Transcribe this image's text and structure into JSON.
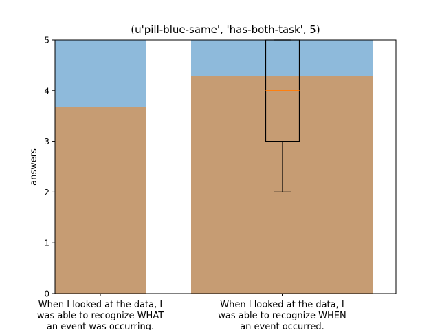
{
  "chart_data": {
    "type": "bar",
    "title": "(u'pill-blue-same', 'has-both-task', 5)",
    "ylabel": "answers",
    "xlabel": "",
    "ylim": [
      0,
      5
    ],
    "yticks": [
      "0",
      "1",
      "2",
      "3",
      "4",
      "5"
    ],
    "categories": [
      [
        "When I looked at the data, I",
        "was able to recognize WHAT",
        "an event was occurring."
      ],
      [
        "When I looked at the data, I",
        "was able to recognize WHEN",
        "an event occurred."
      ]
    ],
    "series": [
      {
        "color": "#8ebadb",
        "values": [
          5,
          5
        ]
      },
      {
        "color": "#c69c73",
        "values": [
          3.68,
          4.29
        ]
      }
    ],
    "boxplot": {
      "category_index": 1,
      "whisker_low": 2,
      "q1": 3,
      "median": 4,
      "q3": 5,
      "whisker_high": 5,
      "median_color": "#ff7f0e"
    }
  }
}
